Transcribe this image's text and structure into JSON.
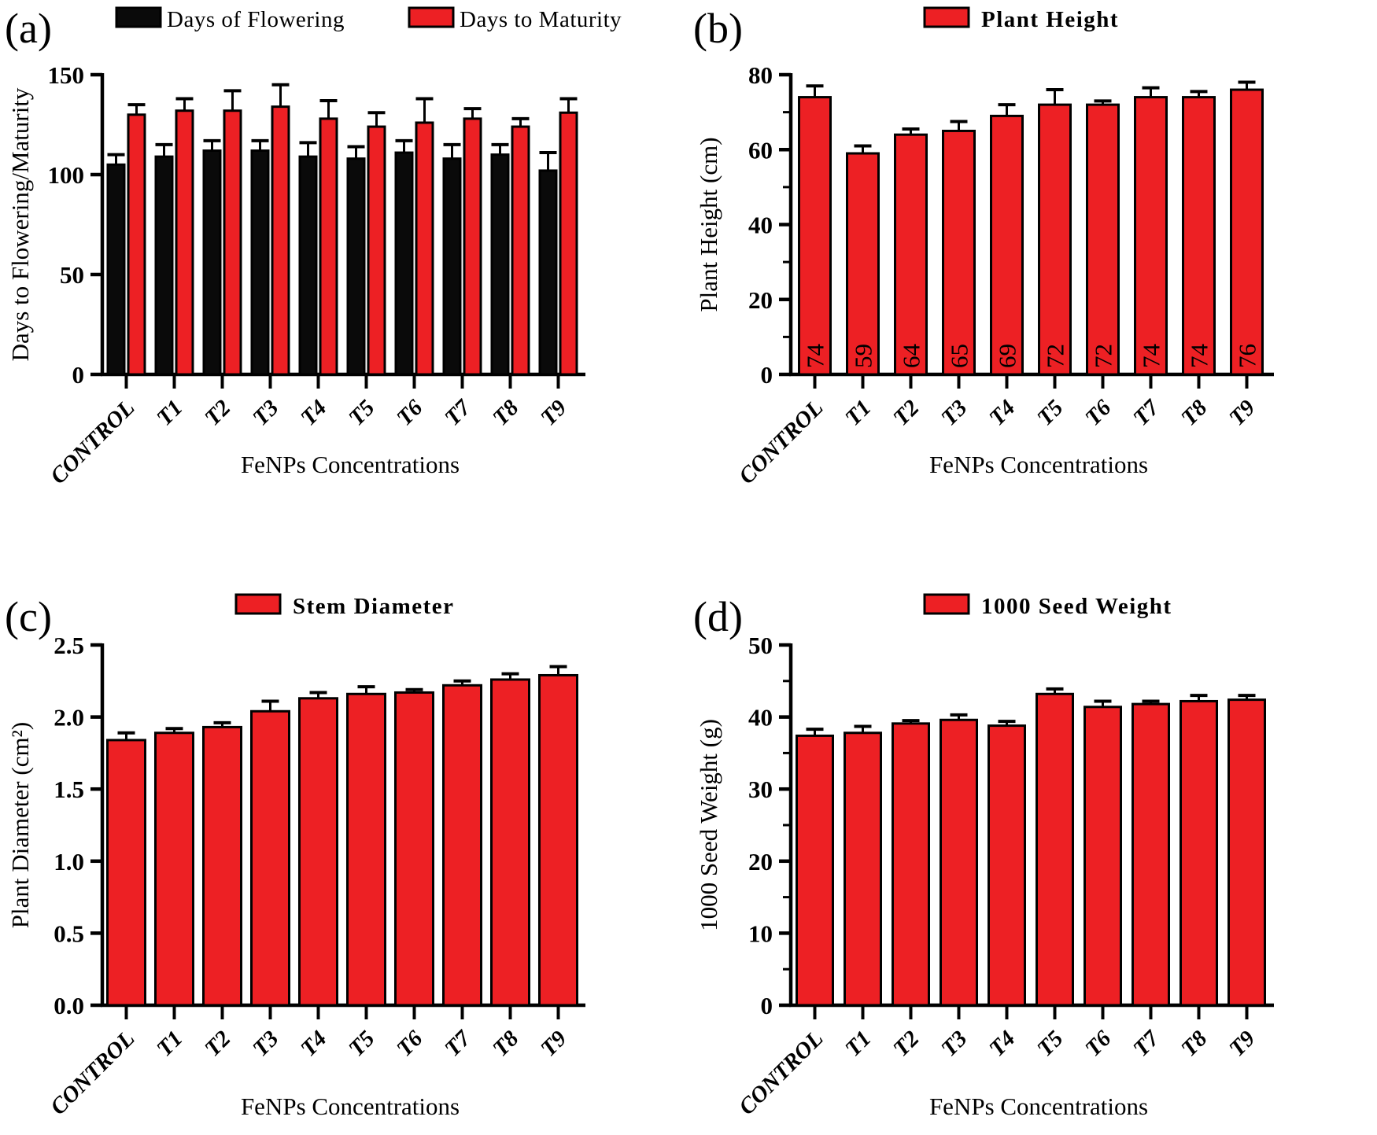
{
  "figure": {
    "xlabel": "FeNPs Concentrations",
    "categories": [
      "CONTROL",
      "T1",
      "T2",
      "T3",
      "T4",
      "T5",
      "T6",
      "T7",
      "T8",
      "T9"
    ],
    "colors": {
      "red": "#ED2024",
      "black": "#0A0A0A",
      "axis": "#000000"
    }
  },
  "chart_data": [
    {
      "id": "a",
      "panel_label": "(a)",
      "type": "bar",
      "categories": [
        "CONTROL",
        "T1",
        "T2",
        "T3",
        "T4",
        "T5",
        "T6",
        "T7",
        "T8",
        "T9"
      ],
      "series": [
        {
          "name": "Days of Flowering",
          "color": "black",
          "values": [
            105,
            109,
            112,
            112,
            109,
            108,
            111,
            108,
            110,
            102
          ],
          "errors": [
            5,
            6,
            5,
            5,
            7,
            6,
            6,
            7,
            5,
            9
          ]
        },
        {
          "name": "Days to Maturity",
          "color": "red",
          "values": [
            130,
            132,
            132,
            134,
            128,
            124,
            126,
            128,
            124,
            131
          ],
          "errors": [
            5,
            6,
            10,
            11,
            9,
            7,
            12,
            5,
            4,
            7
          ]
        }
      ],
      "ylabel": "Days to Flowering/Maturity",
      "xlabel": "FeNPs Concentrations",
      "ylim": [
        0,
        150
      ],
      "ytick_step": 50,
      "minor_step": null,
      "tick_decimals": 0,
      "legend_bold": false,
      "grid": false,
      "legend_position": "top"
    },
    {
      "id": "b",
      "panel_label": "(b)",
      "type": "bar",
      "title": "Plant Height",
      "categories": [
        "CONTROL",
        "T1",
        "T2",
        "T3",
        "T4",
        "T5",
        "T6",
        "T7",
        "T8",
        "T9"
      ],
      "series": [
        {
          "name": "Plant Height",
          "color": "red",
          "values": [
            74,
            59,
            64,
            65,
            69,
            72,
            72,
            74,
            74,
            76
          ],
          "errors": [
            3,
            2,
            1.5,
            2.5,
            3,
            4,
            1,
            2.5,
            1.5,
            2
          ]
        }
      ],
      "bar_labels": [
        "74",
        "59",
        "64",
        "65",
        "69",
        "72",
        "72",
        "74",
        "74",
        "76"
      ],
      "ylabel": "Plant Height (cm)",
      "xlabel": "FeNPs Concentrations",
      "ylim": [
        0,
        80
      ],
      "ytick_step": 20,
      "minor_step": 10,
      "tick_decimals": 0,
      "legend_bold": true,
      "grid": false,
      "legend_position": "top"
    },
    {
      "id": "c",
      "panel_label": "(c)",
      "type": "bar",
      "title": "Stem Diameter",
      "categories": [
        "CONTROL",
        "T1",
        "T2",
        "T3",
        "T4",
        "T5",
        "T6",
        "T7",
        "T8",
        "T9"
      ],
      "series": [
        {
          "name": "Stem Diameter",
          "color": "red",
          "values": [
            1.84,
            1.89,
            1.93,
            2.04,
            2.13,
            2.16,
            2.17,
            2.22,
            2.26,
            2.29
          ],
          "errors": [
            0.05,
            0.03,
            0.03,
            0.07,
            0.04,
            0.05,
            0.02,
            0.03,
            0.04,
            0.06
          ]
        }
      ],
      "ylabel": "Plant Diameter (cm²)",
      "xlabel": "FeNPs Concentrations",
      "ylim": [
        0,
        2.5
      ],
      "ytick_step": 0.5,
      "minor_step": null,
      "tick_decimals": 1,
      "legend_bold": true,
      "grid": false,
      "legend_position": "top"
    },
    {
      "id": "d",
      "panel_label": "(d)",
      "type": "bar",
      "title": "1000 Seed Weight",
      "categories": [
        "CONTROL",
        "T1",
        "T2",
        "T3",
        "T4",
        "T5",
        "T6",
        "T7",
        "T8",
        "T9"
      ],
      "series": [
        {
          "name": "1000 Seed Weight",
          "color": "red",
          "values": [
            37.4,
            37.8,
            39.1,
            39.6,
            38.8,
            43.2,
            41.4,
            41.8,
            42.2,
            42.4
          ],
          "errors": [
            0.9,
            0.9,
            0.4,
            0.7,
            0.6,
            0.7,
            0.8,
            0.4,
            0.8,
            0.6
          ]
        }
      ],
      "ylabel": "1000 Seed Weight (g)",
      "xlabel": "FeNPs Concentrations",
      "ylim": [
        0,
        50
      ],
      "ytick_step": 10,
      "minor_step": 5,
      "tick_decimals": 0,
      "legend_bold": true,
      "grid": false,
      "legend_position": "top"
    }
  ]
}
